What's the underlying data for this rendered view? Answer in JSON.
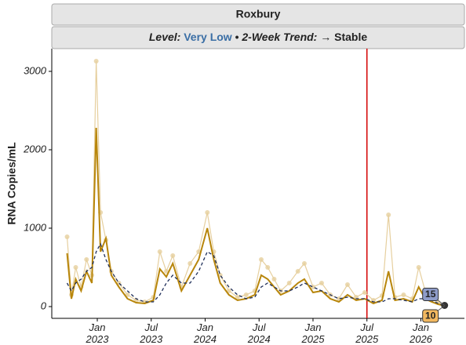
{
  "chart_data": {
    "type": "line",
    "title": "Roxbury",
    "level_label": "Level:",
    "level": "Very Low",
    "level_color": "#3a6ea5",
    "separator": "•",
    "trend_label": "2-Week Trend:",
    "trend": "→ Stable",
    "ylabel": "RNA Copies/mL",
    "xlim": [
      2022.578,
      2026.404
    ],
    "ylim": [
      -150,
      3290
    ],
    "yticks": [
      0,
      1000,
      2000,
      3000
    ],
    "xticks": [
      {
        "value": 2023.0,
        "label": "Jan 2023"
      },
      {
        "value": 2023.5,
        "label": "Jul 2023"
      },
      {
        "value": 2024.0,
        "label": "Jan 2024"
      },
      {
        "value": 2024.5,
        "label": "Jul 2024"
      },
      {
        "value": 2025.0,
        "label": "Jan 2025"
      },
      {
        "value": 2025.5,
        "label": "Jul 2025"
      },
      {
        "value": 2026.0,
        "label": "Jan 2026"
      }
    ],
    "vline": {
      "x": 2025.5,
      "color": "#d40000"
    },
    "x": [
      2022.72,
      2022.76,
      2022.8,
      2022.85,
      2022.9,
      2022.95,
      2022.99,
      2023.03,
      2023.08,
      2023.13,
      2023.2,
      2023.28,
      2023.36,
      2023.44,
      2023.52,
      2023.58,
      2023.64,
      2023.7,
      2023.78,
      2023.86,
      2023.94,
      2024.02,
      2024.08,
      2024.14,
      2024.22,
      2024.3,
      2024.38,
      2024.46,
      2024.52,
      2024.58,
      2024.64,
      2024.7,
      2024.78,
      2024.86,
      2024.92,
      2025.0,
      2025.08,
      2025.16,
      2025.24,
      2025.32,
      2025.4,
      2025.48,
      2025.56,
      2025.64,
      2025.7,
      2025.76,
      2025.84,
      2025.92,
      2025.98,
      2026.04,
      2026.1,
      2026.16,
      2026.22
    ],
    "series": [
      {
        "style": "raw",
        "color": "#e6cf9e",
        "values": [
          890,
          150,
          500,
          250,
          600,
          400,
          3130,
          1200,
          850,
          450,
          300,
          150,
          80,
          60,
          120,
          700,
          450,
          650,
          250,
          550,
          700,
          1200,
          700,
          400,
          200,
          120,
          150,
          200,
          600,
          500,
          350,
          200,
          300,
          450,
          550,
          250,
          300,
          150,
          100,
          280,
          120,
          180,
          80,
          140,
          1170,
          120,
          150,
          100,
          500,
          200,
          120,
          50,
          15
        ]
      },
      {
        "style": "smooth",
        "color": "#b8860b",
        "label_fill": "#f2b860",
        "values": [
          680,
          100,
          350,
          200,
          450,
          300,
          2280,
          700,
          870,
          400,
          250,
          100,
          50,
          40,
          80,
          480,
          380,
          550,
          200,
          400,
          600,
          1000,
          600,
          300,
          150,
          80,
          100,
          150,
          400,
          350,
          250,
          150,
          200,
          300,
          350,
          180,
          200,
          100,
          60,
          150,
          80,
          100,
          40,
          80,
          450,
          80,
          100,
          60,
          250,
          100,
          60,
          30,
          10
        ]
      },
      {
        "style": "dashed",
        "color": "#1f2f5a",
        "label_fill": "#8e9cc9",
        "values": [
          300,
          200,
          300,
          350,
          450,
          500,
          700,
          800,
          600,
          450,
          300,
          200,
          100,
          60,
          60,
          150,
          300,
          400,
          300,
          300,
          450,
          700,
          650,
          400,
          250,
          150,
          100,
          120,
          250,
          300,
          250,
          200,
          200,
          250,
          300,
          250,
          200,
          150,
          100,
          120,
          100,
          100,
          60,
          60,
          100,
          100,
          80,
          60,
          100,
          100,
          80,
          40,
          15
        ]
      }
    ]
  }
}
